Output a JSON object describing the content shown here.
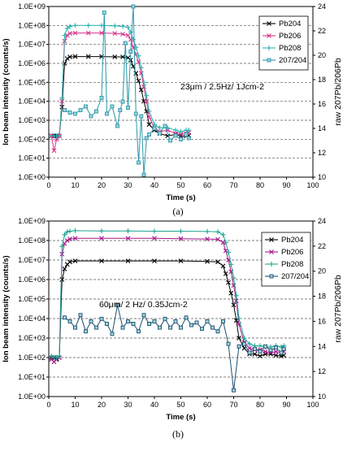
{
  "chart_data": [
    {
      "type": "line",
      "panel_label": "(a)",
      "annotation": "23μm / 2.5Hz/ 1Jcm-2",
      "xlabel": "Time (s)",
      "ylabel_left": "Ion beam intensity (counts/s)",
      "ylabel_right": "raw 207Pb/206Pb",
      "xlim": [
        0,
        100
      ],
      "xticks": [
        "0",
        "10",
        "20",
        "30",
        "40",
        "50",
        "60",
        "70",
        "80",
        "90",
        "100"
      ],
      "ylim_left": [
        1,
        1000000000
      ],
      "yscale_left": "log",
      "yticks_left": [
        "1.0E+00",
        "1.0E+01",
        "1.0E+02",
        "1.0E+03",
        "1.0E+04",
        "1.0E+05",
        "1.0E+06",
        "1.0E+07",
        "1.0E+08",
        "1.0E+09"
      ],
      "ylim_right": [
        10,
        24
      ],
      "yticks_right": [
        "10",
        "12",
        "14",
        "16",
        "18",
        "20",
        "22",
        "24"
      ],
      "grid": "horizontal dashed",
      "legend_position": "top-right",
      "series": [
        {
          "name": "Pb204",
          "axis": "left",
          "color": "#000000",
          "marker": "x",
          "x": [
            1,
            2,
            3,
            4,
            5,
            6,
            7,
            8,
            10,
            15,
            20,
            25,
            28,
            30,
            31,
            32,
            33,
            34,
            35,
            36,
            37,
            38,
            40,
            42,
            45,
            48,
            50,
            52,
            53
          ],
          "y": [
            150,
            150,
            150,
            150,
            5000,
            1000000,
            1800000,
            2200000,
            2300000,
            2300000,
            2300000,
            2200000,
            2200000,
            2000000,
            1500000,
            700000,
            300000,
            120000,
            40000,
            10000,
            3000,
            600,
            300,
            200,
            150,
            180,
            150,
            150,
            160
          ]
        },
        {
          "name": "Pb206",
          "axis": "left",
          "color": "#d6338a",
          "marker": "x",
          "x": [
            1,
            2,
            3,
            4,
            5,
            6,
            7,
            8,
            10,
            15,
            20,
            25,
            28,
            30,
            31,
            32,
            33,
            34,
            35,
            36,
            37,
            38,
            40,
            42,
            45,
            48,
            50,
            52,
            53
          ],
          "y": [
            150,
            25,
            100,
            150,
            10000,
            15000000,
            30000000,
            38000000,
            40000000,
            40000000,
            40000000,
            38000000,
            35000000,
            30000000,
            18000000,
            7000000,
            3000000,
            1200000,
            300000,
            60000,
            10000,
            1500,
            400,
            250,
            300,
            200,
            180,
            200,
            220
          ]
        },
        {
          "name": "Pb208",
          "axis": "left",
          "color": "#2ab5b0",
          "marker": "+",
          "x": [
            1,
            2,
            3,
            4,
            5,
            6,
            7,
            8,
            10,
            15,
            20,
            25,
            28,
            30,
            31,
            32,
            33,
            34,
            35,
            36,
            37,
            38,
            40,
            42,
            45,
            48,
            50,
            52,
            53
          ],
          "y": [
            150,
            150,
            150,
            150,
            15000,
            30000000,
            70000000,
            90000000,
            100000000,
            100000000,
            100000000,
            95000000,
            90000000,
            80000000,
            45000000,
            18000000,
            7000000,
            2500000,
            600000,
            100000,
            20000,
            3000,
            600,
            400,
            400,
            300,
            250,
            300,
            300
          ]
        },
        {
          "name": "207/204",
          "axis": "right",
          "color": "#2a98a8",
          "marker": "square",
          "x": [
            6,
            8,
            10,
            12,
            14,
            16,
            18,
            20,
            21,
            22,
            24,
            26,
            27,
            28,
            29,
            30,
            31,
            32,
            33,
            34,
            35,
            36,
            37,
            38,
            40,
            42,
            44,
            46,
            48,
            50,
            52,
            53
          ],
          "y": [
            15.5,
            15.3,
            15.2,
            15.5,
            15.8,
            15.0,
            15.4,
            16.5,
            23.5,
            15.2,
            15.8,
            14.2,
            15.5,
            16.2,
            21.0,
            15.7,
            20.3,
            24.2,
            15.2,
            11.2,
            15.0,
            10.2,
            13.2,
            13.5,
            14.0,
            13.6,
            14.2,
            13.0,
            13.4,
            13.1,
            13.5,
            13.2
          ]
        }
      ]
    },
    {
      "type": "line",
      "panel_label": "(b)",
      "annotation": "60μm/ 2 Hz/ 0.35Jcm-2",
      "xlabel": "Time (s)",
      "ylabel_left": "Ion beam intensity (counts/s)",
      "ylabel_right": "raw 207Pb/206Pb",
      "xlim": [
        0,
        100
      ],
      "xticks": [
        "0",
        "10",
        "20",
        "30",
        "40",
        "50",
        "60",
        "70",
        "80",
        "90",
        "100"
      ],
      "ylim_left": [
        1,
        1000000000
      ],
      "yscale_left": "log",
      "yticks_left": [
        "1.0E+00",
        "1.0E+01",
        "1.0E+02",
        "1.0E+03",
        "1.0E+04",
        "1.0E+05",
        "1.0E+06",
        "1.0E+07",
        "1.0E+08",
        "1.0E+09"
      ],
      "ylim_right": [
        10,
        24
      ],
      "yticks_right": [
        "10",
        "12",
        "14",
        "16",
        "18",
        "20",
        "22",
        "24"
      ],
      "grid": "horizontal dashed",
      "legend_position": "right",
      "series": [
        {
          "name": "Pb204",
          "axis": "left",
          "color": "#000000",
          "marker": "x",
          "x": [
            1,
            2,
            3,
            4,
            5,
            6,
            7,
            8,
            10,
            20,
            30,
            40,
            50,
            60,
            64,
            66,
            67,
            68,
            69,
            70,
            71,
            72,
            74,
            76,
            78,
            80,
            82,
            84,
            86,
            88,
            89
          ],
          "y": [
            100,
            100,
            80,
            100,
            1000000,
            3500000,
            6000000,
            8000000,
            9000000,
            9000000,
            9000000,
            9000000,
            9000000,
            8500000,
            8000000,
            5000000,
            2000000,
            700000,
            200000,
            50000,
            8000,
            1000,
            300,
            150,
            150,
            120,
            150,
            150,
            130,
            120,
            130
          ]
        },
        {
          "name": "Pb206",
          "axis": "left",
          "color": "#a4188c",
          "marker": "x",
          "x": [
            1,
            2,
            3,
            4,
            5,
            6,
            7,
            8,
            10,
            20,
            30,
            40,
            50,
            60,
            64,
            66,
            67,
            68,
            69,
            70,
            71,
            72,
            74,
            76,
            78,
            80,
            82,
            84,
            86,
            88,
            89
          ],
          "y": [
            80,
            60,
            90,
            100,
            20000000,
            70000000,
            100000000,
            120000000,
            130000000,
            130000000,
            130000000,
            130000000,
            125000000,
            120000000,
            115000000,
            80000000,
            30000000,
            10000000,
            2500000,
            500000,
            80000,
            5000,
            600,
            300,
            250,
            250,
            200,
            180,
            200,
            180,
            200
          ]
        },
        {
          "name": "Pb208",
          "axis": "left",
          "color": "#1ea492",
          "marker": "+",
          "x": [
            1,
            2,
            3,
            4,
            5,
            6,
            7,
            8,
            10,
            20,
            30,
            40,
            50,
            60,
            64,
            66,
            67,
            68,
            69,
            70,
            71,
            72,
            74,
            76,
            78,
            80,
            82,
            84,
            86,
            88,
            89
          ],
          "y": [
            120,
            100,
            100,
            120,
            50000000,
            200000000,
            280000000,
            300000000,
            320000000,
            310000000,
            310000000,
            300000000,
            300000000,
            290000000,
            280000000,
            200000000,
            80000000,
            25000000,
            6000000,
            1200000,
            150000,
            10000,
            1000,
            500,
            400,
            400,
            350,
            350,
            400,
            350,
            400
          ]
        },
        {
          "name": "207/204",
          "axis": "right",
          "color": "#1e4f70",
          "marker": "square",
          "x": [
            6,
            8,
            10,
            12,
            14,
            16,
            18,
            20,
            22,
            24,
            26,
            28,
            30,
            32,
            34,
            36,
            38,
            40,
            42,
            44,
            46,
            48,
            50,
            52,
            54,
            56,
            58,
            60,
            62,
            64,
            66,
            68,
            70,
            72,
            74,
            76,
            78,
            80,
            82,
            84,
            86,
            88,
            89
          ],
          "y": [
            16.3,
            16.0,
            15.5,
            16.5,
            15.2,
            16.0,
            15.5,
            16.2,
            15.8,
            15.0,
            17.3,
            15.5,
            16.0,
            15.8,
            15.2,
            16.5,
            15.8,
            16.0,
            15.5,
            16.2,
            15.5,
            16.0,
            15.5,
            16.3,
            15.7,
            15.9,
            15.4,
            16.0,
            15.5,
            15.2,
            16.0,
            14.2,
            10.5,
            14.0,
            14.2,
            13.5,
            13.8,
            13.6,
            14.0,
            13.7,
            13.9,
            13.5,
            13.8
          ]
        }
      ]
    }
  ]
}
